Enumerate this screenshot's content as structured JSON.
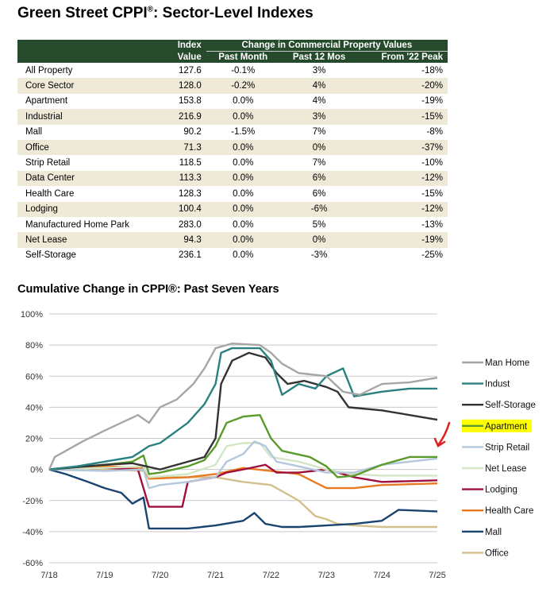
{
  "title": "Green Street CPPI",
  "title_mark": "®",
  "title_rest": ": Sector-Level Indexes",
  "table": {
    "headers": {
      "index_top": "Index",
      "index_bottom": "Value",
      "group": "Change in Commercial Property Values",
      "past_month": "Past Month",
      "past_12": "Past 12 Mos",
      "from_peak": "From '22 Peak"
    },
    "rows": [
      [
        "All Property",
        "127.6",
        "-0.1%",
        "3%",
        "-18%"
      ],
      [
        "Core Sector",
        "128.0",
        "-0.2%",
        "4%",
        "-20%"
      ],
      [
        "Apartment",
        "153.8",
        "0.0%",
        "4%",
        "-19%"
      ],
      [
        "Industrial",
        "216.9",
        "0.0%",
        "3%",
        "-15%"
      ],
      [
        "Mall",
        "90.2",
        "-1.5%",
        "7%",
        "-8%"
      ],
      [
        "Office",
        "71.3",
        "0.0%",
        "0%",
        "-37%"
      ],
      [
        "Strip Retail",
        "118.5",
        "0.0%",
        "7%",
        "-10%"
      ],
      [
        "Data Center",
        "113.3",
        "0.0%",
        "6%",
        "-12%"
      ],
      [
        "Health Care",
        "128.3",
        "0.0%",
        "6%",
        "-15%"
      ],
      [
        "Lodging",
        "100.4",
        "0.0%",
        "-6%",
        "-12%"
      ],
      [
        "Manufactured Home Park",
        "283.0",
        "0.0%",
        "5%",
        "-13%"
      ],
      [
        "Net Lease",
        "94.3",
        "0.0%",
        "0%",
        "-19%"
      ],
      [
        "Self-Storage",
        "236.1",
        "0.0%",
        "-3%",
        "-25%"
      ]
    ]
  },
  "chart_data": {
    "type": "line",
    "title": "Cumulative Change in CPPI®: Past Seven Years",
    "x_ticks": [
      "7/18",
      "7/19",
      "7/20",
      "7/21",
      "7/22",
      "7/23",
      "7/24",
      "7/25"
    ],
    "y_ticks": [
      "100%",
      "80%",
      "60%",
      "40%",
      "20%",
      "0%",
      "-20%",
      "-40%",
      "-60%"
    ],
    "ylim": [
      -60,
      100
    ],
    "xlim": [
      0,
      7
    ],
    "x_unit": "years since 7/18",
    "grid": true,
    "legend": "right",
    "highlighted": "Apartment",
    "series": [
      {
        "name": "Man Home",
        "color": "#a6a6a6",
        "points": [
          [
            0,
            0
          ],
          [
            0.1,
            8
          ],
          [
            0.3,
            12
          ],
          [
            0.6,
            18
          ],
          [
            1,
            25
          ],
          [
            1.3,
            30
          ],
          [
            1.6,
            35
          ],
          [
            1.8,
            30
          ],
          [
            2,
            40
          ],
          [
            2.3,
            45
          ],
          [
            2.6,
            55
          ],
          [
            2.8,
            65
          ],
          [
            3,
            78
          ],
          [
            3.3,
            81
          ],
          [
            3.8,
            80
          ],
          [
            4,
            75
          ],
          [
            4.2,
            68
          ],
          [
            4.5,
            62
          ],
          [
            5,
            60
          ],
          [
            5.3,
            50
          ],
          [
            5.6,
            48
          ],
          [
            6,
            55
          ],
          [
            6.5,
            56
          ],
          [
            7,
            59
          ]
        ]
      },
      {
        "name": "Indust",
        "color": "#2a8080",
        "points": [
          [
            0,
            0
          ],
          [
            0.5,
            2
          ],
          [
            1,
            5
          ],
          [
            1.5,
            8
          ],
          [
            1.8,
            15
          ],
          [
            2,
            17
          ],
          [
            2.5,
            30
          ],
          [
            2.8,
            42
          ],
          [
            3,
            55
          ],
          [
            3.1,
            75
          ],
          [
            3.3,
            78
          ],
          [
            3.8,
            78
          ],
          [
            4,
            70
          ],
          [
            4.2,
            48
          ],
          [
            4.5,
            55
          ],
          [
            4.8,
            52
          ],
          [
            5,
            60
          ],
          [
            5.3,
            65
          ],
          [
            5.5,
            47
          ],
          [
            6,
            50
          ],
          [
            6.5,
            52
          ],
          [
            7,
            52
          ]
        ]
      },
      {
        "name": "Self-Storage",
        "color": "#333333",
        "points": [
          [
            0,
            0
          ],
          [
            1,
            3
          ],
          [
            1.5,
            4
          ],
          [
            2,
            0
          ],
          [
            2.5,
            5
          ],
          [
            2.8,
            8
          ],
          [
            3,
            20
          ],
          [
            3.1,
            55
          ],
          [
            3.3,
            70
          ],
          [
            3.6,
            75
          ],
          [
            3.9,
            72
          ],
          [
            4.1,
            62
          ],
          [
            4.3,
            55
          ],
          [
            4.6,
            57
          ],
          [
            5,
            53
          ],
          [
            5.2,
            50
          ],
          [
            5.4,
            40
          ],
          [
            6,
            38
          ],
          [
            6.5,
            35
          ],
          [
            7,
            32
          ]
        ]
      },
      {
        "name": "Apartment",
        "color": "#5a9a2a",
        "points": [
          [
            0,
            0
          ],
          [
            1,
            3
          ],
          [
            1.5,
            5
          ],
          [
            1.7,
            9
          ],
          [
            1.8,
            -3
          ],
          [
            2,
            -2
          ],
          [
            2.5,
            2
          ],
          [
            2.8,
            6
          ],
          [
            3,
            15
          ],
          [
            3.2,
            30
          ],
          [
            3.5,
            34
          ],
          [
            3.8,
            35
          ],
          [
            4,
            20
          ],
          [
            4.2,
            12
          ],
          [
            4.7,
            8
          ],
          [
            5,
            2
          ],
          [
            5.2,
            -5
          ],
          [
            5.5,
            -4
          ],
          [
            6,
            3
          ],
          [
            6.5,
            8
          ],
          [
            7,
            8
          ]
        ]
      },
      {
        "name": "Strip Retail",
        "color": "#b4c7dc",
        "points": [
          [
            0,
            0
          ],
          [
            1,
            -1
          ],
          [
            1.7,
            0
          ],
          [
            1.8,
            -12
          ],
          [
            2,
            -10
          ],
          [
            2.5,
            -8
          ],
          [
            3,
            -5
          ],
          [
            3.2,
            5
          ],
          [
            3.5,
            10
          ],
          [
            3.7,
            18
          ],
          [
            3.9,
            15
          ],
          [
            4.1,
            5
          ],
          [
            4.5,
            2
          ],
          [
            5,
            -2
          ],
          [
            5.5,
            -2
          ],
          [
            6,
            3
          ],
          [
            6.5,
            5
          ],
          [
            7,
            7
          ]
        ]
      },
      {
        "name": "Net Lease",
        "color": "#d3e6c6",
        "points": [
          [
            0,
            0
          ],
          [
            1,
            1
          ],
          [
            1.7,
            2
          ],
          [
            1.8,
            -5
          ],
          [
            2.5,
            -3
          ],
          [
            3,
            3
          ],
          [
            3.2,
            15
          ],
          [
            3.5,
            17
          ],
          [
            3.8,
            17
          ],
          [
            4,
            8
          ],
          [
            4.5,
            5
          ],
          [
            5,
            0
          ],
          [
            5.5,
            -3
          ],
          [
            6,
            -4
          ],
          [
            7,
            -4
          ]
        ]
      },
      {
        "name": "Lodging",
        "color": "#a0103c",
        "points": [
          [
            0,
            0
          ],
          [
            1,
            1
          ],
          [
            1.6,
            0
          ],
          [
            1.8,
            -24
          ],
          [
            2.4,
            -24
          ],
          [
            2.5,
            -8
          ],
          [
            3,
            -5
          ],
          [
            3.2,
            -2
          ],
          [
            3.5,
            0
          ],
          [
            3.9,
            3
          ],
          [
            4.1,
            -2
          ],
          [
            4.5,
            -2
          ],
          [
            5,
            0
          ],
          [
            5.5,
            -5
          ],
          [
            6,
            -8
          ],
          [
            7,
            -7
          ]
        ]
      },
      {
        "name": "Health Care",
        "color": "#e87b22",
        "points": [
          [
            0,
            0
          ],
          [
            1,
            2
          ],
          [
            1.7,
            1
          ],
          [
            1.8,
            -6
          ],
          [
            2.5,
            -5
          ],
          [
            3,
            -3
          ],
          [
            3.5,
            1
          ],
          [
            4,
            -1
          ],
          [
            4.5,
            -3
          ],
          [
            5,
            -12
          ],
          [
            5.5,
            -12
          ],
          [
            6,
            -10
          ],
          [
            7,
            -9
          ]
        ]
      },
      {
        "name": "Mall",
        "color": "#1a4470",
        "points": [
          [
            0,
            0
          ],
          [
            0.3,
            -3
          ],
          [
            0.7,
            -8
          ],
          [
            1,
            -12
          ],
          [
            1.3,
            -15
          ],
          [
            1.5,
            -22
          ],
          [
            1.7,
            -18
          ],
          [
            1.8,
            -38
          ],
          [
            2.5,
            -38
          ],
          [
            3,
            -36
          ],
          [
            3.5,
            -33
          ],
          [
            3.7,
            -28
          ],
          [
            3.9,
            -35
          ],
          [
            4.2,
            -37
          ],
          [
            4.5,
            -37
          ],
          [
            5,
            -36
          ],
          [
            5.5,
            -35
          ],
          [
            6,
            -33
          ],
          [
            6.3,
            -26
          ],
          [
            7,
            -27
          ]
        ]
      },
      {
        "name": "Office",
        "color": "#d4c08c",
        "points": [
          [
            0,
            0
          ],
          [
            1,
            0
          ],
          [
            1.7,
            -1
          ],
          [
            1.8,
            -5
          ],
          [
            2.5,
            -5
          ],
          [
            3,
            -5
          ],
          [
            3.5,
            -8
          ],
          [
            4,
            -10
          ],
          [
            4.5,
            -20
          ],
          [
            4.8,
            -30
          ],
          [
            5,
            -32
          ],
          [
            5.2,
            -35
          ],
          [
            5.5,
            -36
          ],
          [
            6,
            -37
          ],
          [
            7,
            -37
          ]
        ]
      }
    ]
  }
}
